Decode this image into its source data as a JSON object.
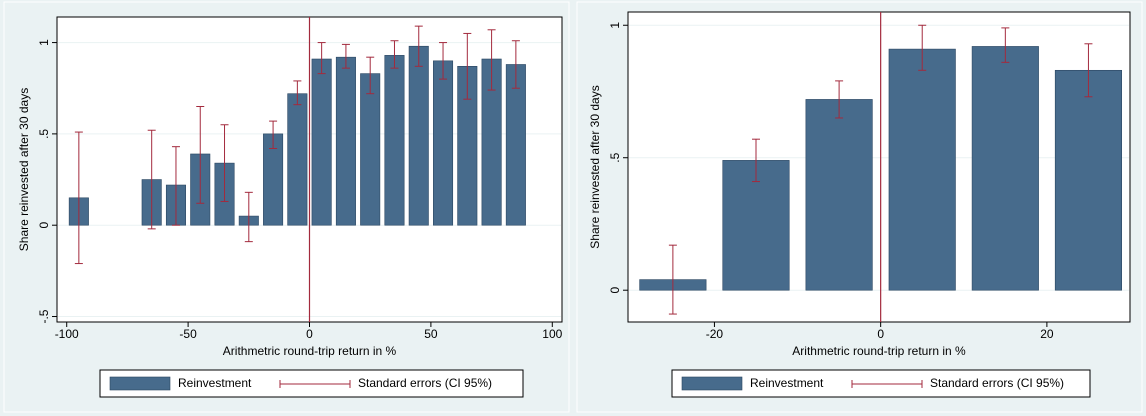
{
  "chart_data": [
    {
      "type": "bar",
      "xlabel": "Arithmetric round-trip return in %",
      "ylabel": "Share reinvested after 30 days",
      "xlim": [
        -104,
        104
      ],
      "ylim": [
        -0.53,
        1.14
      ],
      "xticks": [
        -100,
        -50,
        0,
        50,
        100
      ],
      "yticks": [
        {
          "value": -0.5,
          "label": "-.5"
        },
        0,
        {
          "value": 0.5,
          "label": ".5"
        },
        1
      ],
      "grid": true,
      "xline": 0,
      "x": [
        -95,
        -65,
        -55,
        -45,
        -35,
        -25,
        -15,
        -5,
        5,
        15,
        25,
        35,
        45,
        55,
        65,
        75,
        85
      ],
      "series": [
        {
          "name": "Reinvestment",
          "color": "#476b8c",
          "values": [
            0.15,
            0.25,
            0.22,
            0.39,
            0.34,
            0.05,
            0.5,
            0.72,
            0.91,
            0.92,
            0.83,
            0.93,
            0.98,
            0.9,
            0.87,
            0.91,
            0.88
          ]
        },
        {
          "name": "Standard errors (CI 95%)",
          "color": "#a32a3d",
          "low": [
            -0.21,
            -0.02,
            0.0,
            0.12,
            0.13,
            -0.09,
            0.42,
            0.66,
            0.83,
            0.86,
            0.72,
            0.86,
            0.87,
            0.8,
            0.69,
            0.74,
            0.75
          ],
          "high": [
            0.51,
            0.52,
            0.43,
            0.65,
            0.55,
            0.18,
            0.57,
            0.79,
            1.0,
            0.99,
            0.92,
            1.01,
            1.09,
            1.0,
            1.05,
            1.07,
            1.01
          ]
        }
      ]
    },
    {
      "type": "bar",
      "xlabel": "Arithmetric round-trip return in %",
      "ylabel": "Share reinvested after 30 days",
      "xlim": [
        -30.4,
        30
      ],
      "ylim": [
        -0.12,
        1.05
      ],
      "xticks": [
        -20,
        0,
        20
      ],
      "yticks": [
        0,
        {
          "value": 0.5,
          "label": ".5"
        },
        1
      ],
      "grid": true,
      "xline": 0,
      "x": [
        -25,
        -15,
        -5,
        5,
        15,
        25
      ],
      "series": [
        {
          "name": "Reinvestment",
          "color": "#476b8c",
          "values": [
            0.04,
            0.49,
            0.72,
            0.91,
            0.92,
            0.83
          ]
        },
        {
          "name": "Standard errors (CI 95%)",
          "color": "#a32a3d",
          "low": [
            -0.09,
            0.41,
            0.65,
            0.83,
            0.86,
            0.73
          ],
          "high": [
            0.17,
            0.57,
            0.79,
            1.0,
            0.99,
            0.93
          ]
        }
      ]
    }
  ]
}
